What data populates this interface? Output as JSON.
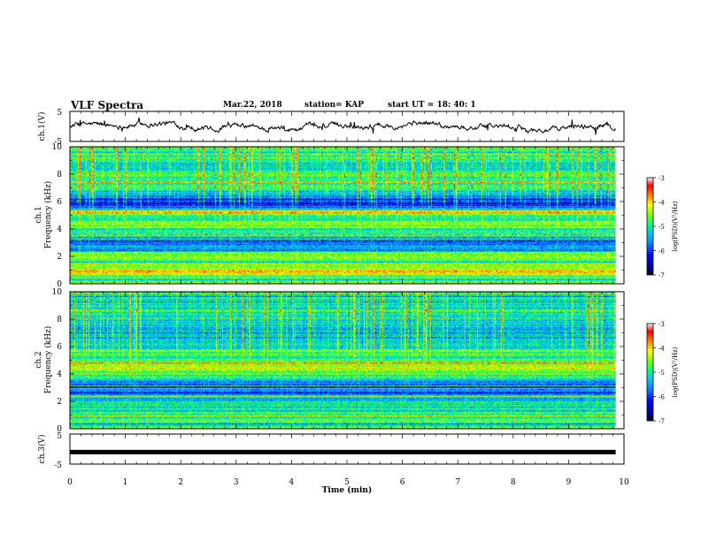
{
  "header": {
    "title": "VLF Spectra",
    "date": "Mar.22, 2018",
    "station": "station= KAP",
    "start_ut": "start  UT =   18: 40: 1"
  },
  "chart_data": [
    {
      "type": "line",
      "name": "ch1-waveform",
      "ylabel": "ch.1(V)",
      "ylim": [
        -5,
        5
      ],
      "yticks": [
        -5,
        5
      ],
      "xlim": [
        0,
        10
      ],
      "approx_level_V": 0.0,
      "approx_excursion_V": 1.5,
      "color": "#000000"
    },
    {
      "type": "heatmap",
      "name": "ch1-spectrogram",
      "ylabel": "ch.1\nFrequency  (kHz)",
      "ylim": [
        0,
        10
      ],
      "yticks": [
        0,
        2,
        4,
        6,
        8,
        10
      ],
      "xlim": [
        0,
        9.85
      ],
      "colorbar": {
        "label": "log(PSD)(V²/Hz)",
        "ticks": [
          -3,
          -4,
          -5,
          -6,
          -7
        ],
        "range": [
          -7,
          -3
        ],
        "colors": [
          "#000000",
          "#0000a0",
          "#0000ff",
          "#0080ff",
          "#00c0ff",
          "#00ff80",
          "#80ff00",
          "#ffff00",
          "#ff8000",
          "#ff0000",
          "#ffffff"
        ]
      },
      "freq_profile_kHz_logpsd": [
        [
          0.0,
          -4.3
        ],
        [
          0.3,
          -5.4
        ],
        [
          0.6,
          -4.2
        ],
        [
          0.9,
          -3.7
        ],
        [
          1.2,
          -4.7
        ],
        [
          1.5,
          -4.4
        ],
        [
          1.8,
          -4.9
        ],
        [
          2.1,
          -4.2
        ],
        [
          2.4,
          -5.6
        ],
        [
          2.7,
          -5.3
        ],
        [
          3.0,
          -5.9
        ],
        [
          3.3,
          -5.7
        ],
        [
          3.6,
          -4.8
        ],
        [
          4.0,
          -4.9
        ],
        [
          4.4,
          -4.4
        ],
        [
          4.8,
          -5.2
        ],
        [
          5.2,
          -4.0
        ],
        [
          5.5,
          -5.2
        ],
        [
          5.8,
          -6.3
        ],
        [
          6.1,
          -5.9
        ],
        [
          6.6,
          -5.4
        ],
        [
          7.0,
          -4.9
        ],
        [
          7.5,
          -5.0
        ],
        [
          8.0,
          -4.9
        ],
        [
          8.5,
          -5.2
        ],
        [
          9.0,
          -5.0
        ],
        [
          9.5,
          -4.8
        ],
        [
          10.0,
          -4.7
        ]
      ]
    },
    {
      "type": "heatmap",
      "name": "ch2-spectrogram",
      "ylabel": "ch.2\nFrequency  (kHz)",
      "ylim": [
        0,
        10
      ],
      "yticks": [
        0,
        2,
        4,
        6,
        8,
        10
      ],
      "xlim": [
        0,
        9.85
      ],
      "colorbar": {
        "label": "log(PSD)(V²/Hz)",
        "ticks": [
          -3,
          -4,
          -5,
          -6,
          -7
        ],
        "range": [
          -7,
          -3
        ],
        "colors": [
          "#000000",
          "#0000a0",
          "#0000ff",
          "#0080ff",
          "#00c0ff",
          "#00ff80",
          "#80ff00",
          "#ffff00",
          "#ff8000",
          "#ff0000",
          "#ffffff"
        ]
      },
      "freq_profile_kHz_logpsd": [
        [
          0.0,
          -4.5
        ],
        [
          0.3,
          -5.2
        ],
        [
          0.6,
          -4.8
        ],
        [
          0.9,
          -5.0
        ],
        [
          1.2,
          -5.0
        ],
        [
          1.5,
          -5.2
        ],
        [
          1.8,
          -5.0
        ],
        [
          2.1,
          -5.3
        ],
        [
          2.4,
          -5.5
        ],
        [
          2.7,
          -5.6
        ],
        [
          3.0,
          -5.9
        ],
        [
          3.3,
          -5.7
        ],
        [
          3.6,
          -5.0
        ],
        [
          4.0,
          -4.6
        ],
        [
          4.4,
          -4.4
        ],
        [
          4.8,
          -4.7
        ],
        [
          5.2,
          -5.0
        ],
        [
          5.6,
          -4.6
        ],
        [
          6.0,
          -5.1
        ],
        [
          6.5,
          -5.3
        ],
        [
          7.0,
          -5.4
        ],
        [
          7.5,
          -5.3
        ],
        [
          8.0,
          -5.1
        ],
        [
          8.5,
          -5.1
        ],
        [
          9.0,
          -5.0
        ],
        [
          9.5,
          -5.0
        ],
        [
          10.0,
          -4.9
        ]
      ]
    },
    {
      "type": "line",
      "name": "ch3-waveform",
      "ylabel": "ch.3(V)",
      "ylim": [
        -5,
        5
      ],
      "yticks": [
        -5,
        5
      ],
      "xlim": [
        0,
        9.85
      ],
      "approx_level_V": -1.0,
      "color": "#000000"
    }
  ],
  "xaxis": {
    "label": "Time  (min)",
    "ticks": [
      "0",
      "1",
      "2",
      "3",
      "4",
      "5",
      "6",
      "7",
      "8",
      "9",
      "10"
    ],
    "xlim": [
      0,
      10
    ]
  }
}
